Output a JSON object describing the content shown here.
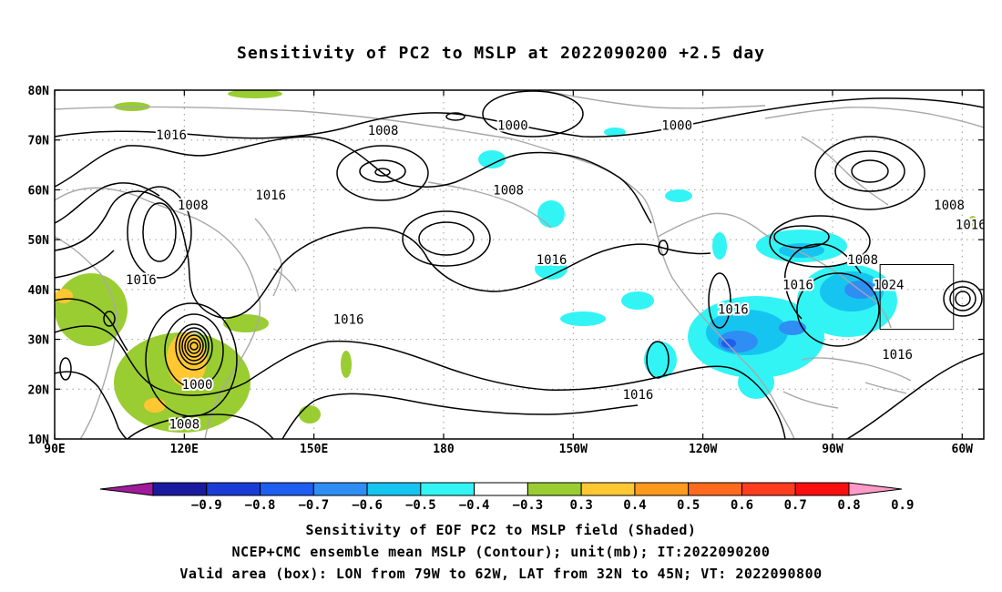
{
  "title": "Sensitivity of PC2 to MSLP at 2022090200 +2.5 day",
  "map": {
    "lat_ticks": [
      "80N",
      "70N",
      "60N",
      "50N",
      "40N",
      "30N",
      "20N",
      "10N"
    ],
    "lon_ticks": [
      "90E",
      "120E",
      "150E",
      "180",
      "150W",
      "120W",
      "90W",
      "60W"
    ],
    "extent": {
      "lon_min": 90,
      "lon_max": 305,
      "lat_min": 10,
      "lat_max": 80
    },
    "valid_box": {
      "lon_from": "79W",
      "lon_to": "62W",
      "lat_from": "32N",
      "lat_to": "45N"
    },
    "contour_labels": [
      {
        "text": "1016",
        "lon": 117,
        "lat": 71
      },
      {
        "text": "1008",
        "lon": 166,
        "lat": 72
      },
      {
        "text": "1000",
        "lon": 196,
        "lat": 73
      },
      {
        "text": "1000",
        "lon": 234,
        "lat": 73
      },
      {
        "text": "1008",
        "lon": 122,
        "lat": 57
      },
      {
        "text": "1016",
        "lon": 140,
        "lat": 59
      },
      {
        "text": "1008",
        "lon": 195,
        "lat": 60
      },
      {
        "text": "1016",
        "lon": 110,
        "lat": 42
      },
      {
        "text": "1016",
        "lon": 205,
        "lat": 46
      },
      {
        "text": "1008",
        "lon": 277,
        "lat": 46
      },
      {
        "text": "1016",
        "lon": 262,
        "lat": 41
      },
      {
        "text": "1016",
        "lon": 247,
        "lat": 36
      },
      {
        "text": "1024",
        "lon": 283,
        "lat": 41
      },
      {
        "text": "1008",
        "lon": 297,
        "lat": 57
      },
      {
        "text": "1016",
        "lon": 302,
        "lat": 53
      },
      {
        "text": "1016",
        "lon": 158,
        "lat": 34
      },
      {
        "text": "1016",
        "lon": 285,
        "lat": 27
      },
      {
        "text": "1016",
        "lon": 225,
        "lat": 19
      },
      {
        "text": "1000",
        "lon": 123,
        "lat": 21
      },
      {
        "text": "1008",
        "lon": 120,
        "lat": 13
      }
    ]
  },
  "colorbar": {
    "labels": [
      "-0.9",
      "-0.8",
      "-0.7",
      "-0.6",
      "-0.5",
      "-0.4",
      "-0.3",
      "0.3",
      "0.4",
      "0.5",
      "0.6",
      "0.7",
      "0.8",
      "0.9"
    ],
    "colors": [
      "#a01a9c",
      "#1a1aa0",
      "#1a3cd6",
      "#1e5ef0",
      "#2e8ef4",
      "#16c4f0",
      "#33f4f4",
      "#ffffff",
      "#9acd32",
      "#ffc832",
      "#ff9a1e",
      "#ff6a1e",
      "#ff3c1e",
      "#fa0f0f",
      "#ff9ac8"
    ]
  },
  "captions": [
    "Sensitivity of EOF PC2 to MSLP field (Shaded)",
    "NCEP+CMC ensemble mean MSLP (Contour); unit(mb); IT:2022090200",
    "Valid area (box): LON from 79W to 62W, LAT from 32N to 45N; VT: 2022090800"
  ]
}
